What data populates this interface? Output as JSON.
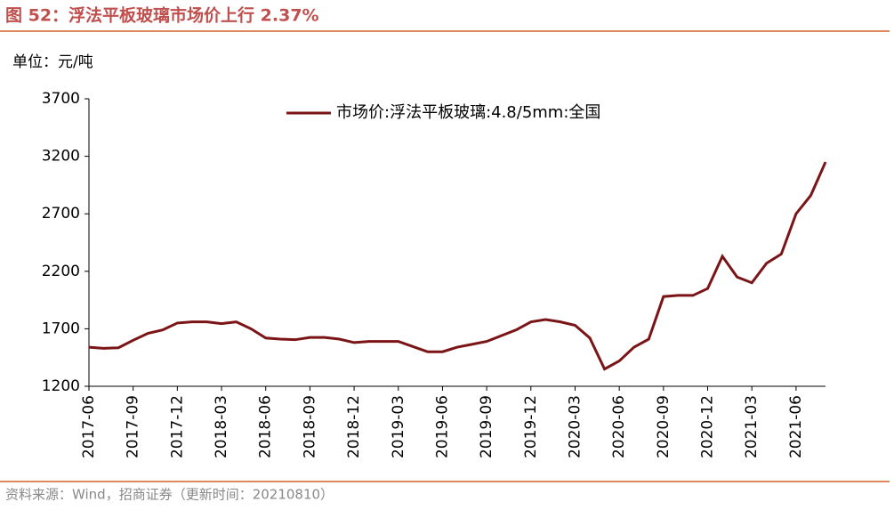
{
  "title": "图 52：浮法平板玻璃市场价上行 2.37%",
  "source": "资料来源：Wind，招商证券（更新时间：20210810）",
  "chart_data": {
    "type": "line",
    "y_unit": "单位：元/吨",
    "categories": [
      "2017-06",
      null,
      null,
      "2017-09",
      null,
      null,
      "2017-12",
      null,
      null,
      "2018-03",
      null,
      null,
      "2018-06",
      null,
      null,
      "2018-09",
      null,
      null,
      "2018-12",
      null,
      null,
      "2019-03",
      null,
      null,
      "2019-06",
      null,
      null,
      "2019-09",
      null,
      null,
      "2019-12",
      null,
      null,
      "2020-03",
      null,
      null,
      "2020-06",
      null,
      null,
      "2020-09",
      null,
      null,
      "2020-12",
      null,
      null,
      "2021-03",
      null,
      null,
      "2021-06",
      null,
      null
    ],
    "series": [
      {
        "name": "市场价:浮法平板玻璃:4.8/5mm:全国",
        "color": "#7b1416",
        "values": [
          1540,
          1530,
          1535,
          1600,
          1660,
          1690,
          1750,
          1760,
          1760,
          1745,
          1760,
          1700,
          1620,
          1610,
          1605,
          1625,
          1625,
          1610,
          1580,
          1590,
          1590,
          1590,
          1545,
          1500,
          1500,
          1540,
          1565,
          1590,
          1640,
          1690,
          1760,
          1780,
          1760,
          1730,
          1620,
          1350,
          1420,
          1540,
          1610,
          1980,
          1990,
          1990,
          2050,
          2330,
          2150,
          2100,
          2270,
          2350,
          2700,
          2860,
          3150
        ]
      }
    ],
    "ylim": [
      1200,
      3700
    ],
    "yticks": [
      1200,
      1700,
      2200,
      2700,
      3200,
      3700
    ],
    "legend": "top"
  }
}
